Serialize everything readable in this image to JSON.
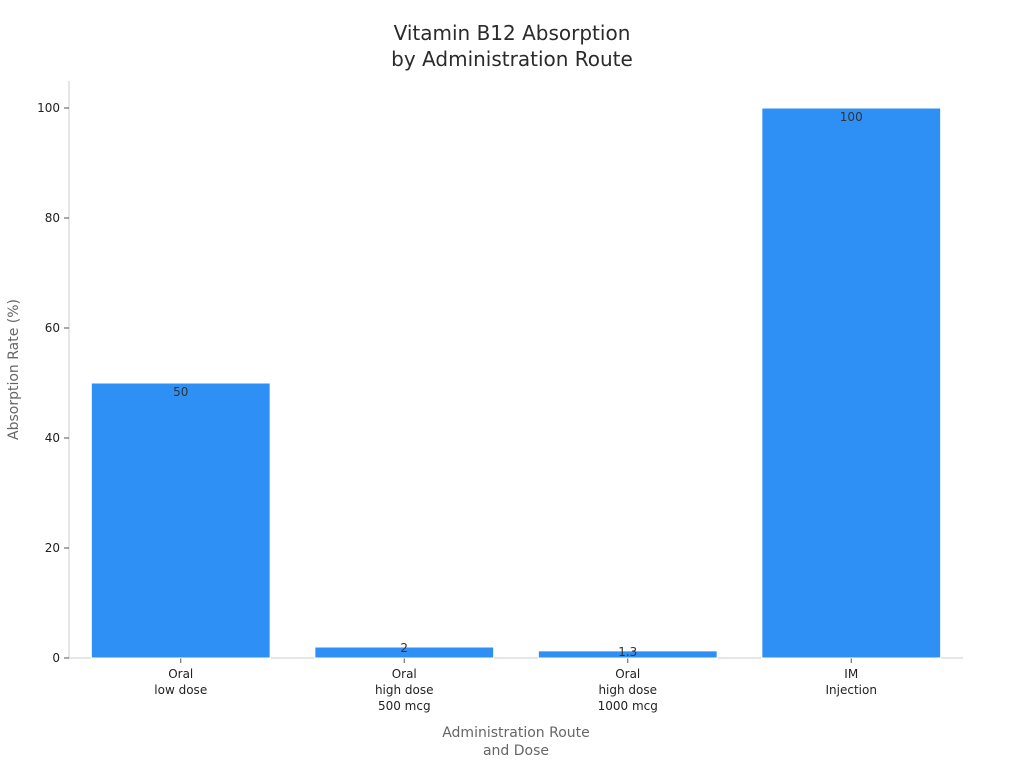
{
  "chart_data": {
    "type": "bar",
    "title": [
      "Vitamin B12 Absorption",
      "by Administration Route"
    ],
    "categories": [
      [
        "Oral",
        "low dose"
      ],
      [
        "Oral",
        "high dose",
        "500 mcg"
      ],
      [
        "Oral",
        "high dose",
        "1000 mcg"
      ],
      [
        "IM",
        "Injection"
      ]
    ],
    "values": [
      50,
      2,
      1.3,
      100
    ],
    "data_labels": [
      "50",
      "2",
      "1.3",
      "100"
    ],
    "xlabel": [
      "Administration Route",
      "and Dose"
    ],
    "ylabel": "Absorption Rate (%)",
    "ylim": [
      0,
      105
    ],
    "yticks": [
      0,
      20,
      40,
      60,
      80,
      100
    ],
    "grid": false,
    "color": "#2e90f5"
  }
}
